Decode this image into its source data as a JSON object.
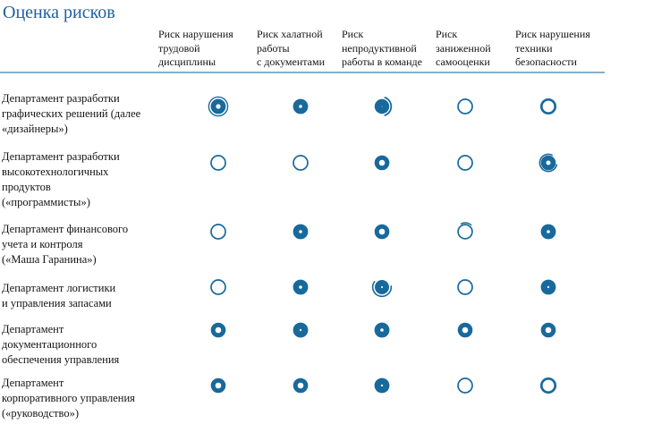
{
  "title": "Оценка рисков",
  "colors": {
    "title": "#1f5fa0",
    "mark": "#18699c",
    "divider": "#85aecd",
    "text": "#141414"
  },
  "table": {
    "column_headers": [
      "Риск нарушения\nтрудовой\nдисциплины",
      "Риск халатной\nработы\nс документами",
      "Риск\nнепродуктивной\nработы в команде",
      "Риск\nзаниженной\nсамооценки",
      "Риск нарушения\nтехники\nбезопасности"
    ],
    "rows": [
      {
        "label": "Департамент разработки\nграфических решений (далее\n«дизайнеры»)",
        "marks": [
          "ring-double-outline",
          "ring-heavy",
          "filled-outer-arc",
          "circle-outline-thin",
          "circle-outline-medium"
        ]
      },
      {
        "label": "Департамент разработки\nвысокотехнологичных\nпродуктов\n(«программисты»)",
        "marks": [
          "circle-outline-thin",
          "circle-outline-thin",
          "ring-bold",
          "circle-outline-thin",
          "ring-heavy-swirl"
        ]
      },
      {
        "label": "Департамент финансового\nучета и контроля\n(«Маша Гаранина»)",
        "marks": [
          "circle-outline-thin",
          "ring-heavy",
          "ring-bold",
          "outline-top-arc",
          "ring-heavy"
        ]
      },
      {
        "label": "Департамент логистики\nи управления запасами",
        "marks": [
          "circle-outline-thin",
          "ring-heavy",
          "filled-dot-swirl",
          "circle-outline-thin",
          "filled-dot"
        ]
      },
      {
        "label": "Департамент\nдокументационного\nобеспечения управления",
        "marks": [
          "ring-bold",
          "filled-dot",
          "ring-heavy",
          "ring-bold",
          "ring-bold"
        ]
      },
      {
        "label": "Департамент\nкорпоративного управления\n(«руководство»)",
        "marks": [
          "ring-bold",
          "ring-bold",
          "filled-dot",
          "circle-outline-thin",
          "circle-outline-medium"
        ]
      }
    ]
  }
}
